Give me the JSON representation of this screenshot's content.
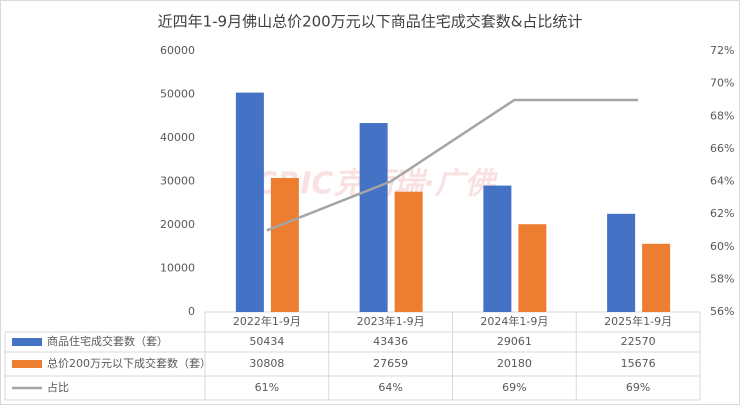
{
  "chart_data": {
    "type": "bar-line",
    "title": "近四年1-9月佛山总价200万元以下商品住宅成交套数&占比统计",
    "watermark": "CRIC克而瑞·广佛",
    "categories": [
      "2022年1-9月",
      "2023年1-9月",
      "2024年1-9月",
      "2025年1-9月"
    ],
    "series": [
      {
        "name": "商品住宅成交套数（套）",
        "type": "bar",
        "color": "#4472c4",
        "values": [
          50434,
          43436,
          29061,
          22570
        ]
      },
      {
        "name": "总价200万元以下成交套数（套）",
        "type": "bar",
        "color": "#ed7d31",
        "values": [
          30808,
          27659,
          20180,
          15676
        ]
      },
      {
        "name": "占比",
        "type": "line",
        "axis": "y2",
        "color": "#a5a5a5",
        "values": [
          61,
          64,
          69,
          69
        ],
        "value_labels": [
          "61%",
          "64%",
          "69%",
          "69%"
        ]
      }
    ],
    "ylim": [
      0,
      60000
    ],
    "yticks": [
      0,
      10000,
      20000,
      30000,
      40000,
      50000,
      60000
    ],
    "y2lim": [
      56,
      72
    ],
    "y2ticks": [
      {
        "value": 56,
        "label": "56%"
      },
      {
        "value": 58,
        "label": "58%"
      },
      {
        "value": 60,
        "label": "60%"
      },
      {
        "value": 62,
        "label": "62%"
      },
      {
        "value": 64,
        "label": "64%"
      },
      {
        "value": 66,
        "label": "66%"
      },
      {
        "value": 68,
        "label": "68%"
      },
      {
        "value": 70,
        "label": "70%"
      },
      {
        "value": 72,
        "label": "72%"
      }
    ],
    "grid": false
  }
}
